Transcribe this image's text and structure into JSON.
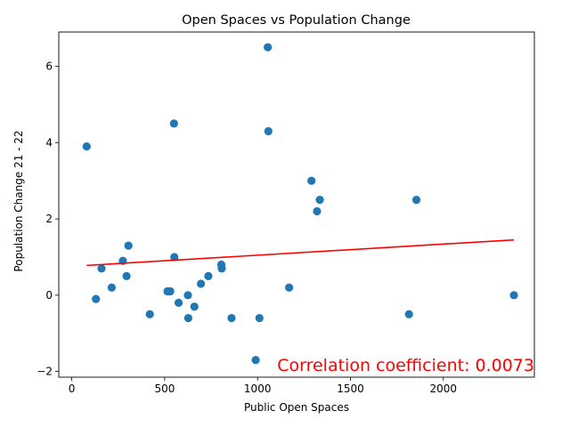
{
  "chart_data": {
    "type": "scatter",
    "title": "Open Spaces vs Population Change",
    "xlabel": "Public Open Spaces",
    "ylabel": "Population Change 21 - 22",
    "xlim": [
      -70,
      2490
    ],
    "ylim": [
      -2.15,
      6.9
    ],
    "xticks": [
      0,
      500,
      1000,
      1500,
      2000
    ],
    "yticks": [
      -2,
      0,
      2,
      4,
      6
    ],
    "grid": false,
    "points_color": "#1f77b4",
    "points": [
      {
        "x": 80,
        "y": 3.9
      },
      {
        "x": 130,
        "y": -0.1
      },
      {
        "x": 160,
        "y": 0.7
      },
      {
        "x": 215,
        "y": 0.2
      },
      {
        "x": 275,
        "y": 0.9
      },
      {
        "x": 295,
        "y": 0.5
      },
      {
        "x": 305,
        "y": 1.3
      },
      {
        "x": 420,
        "y": -0.5
      },
      {
        "x": 515,
        "y": 0.1
      },
      {
        "x": 530,
        "y": 0.1
      },
      {
        "x": 550,
        "y": 4.5
      },
      {
        "x": 552,
        "y": 1.0
      },
      {
        "x": 575,
        "y": -0.2
      },
      {
        "x": 625,
        "y": 0.0
      },
      {
        "x": 627,
        "y": -0.6
      },
      {
        "x": 660,
        "y": -0.3
      },
      {
        "x": 695,
        "y": 0.3
      },
      {
        "x": 735,
        "y": 0.5
      },
      {
        "x": 805,
        "y": 0.8
      },
      {
        "x": 807,
        "y": 0.7
      },
      {
        "x": 860,
        "y": -0.6
      },
      {
        "x": 990,
        "y": -1.7
      },
      {
        "x": 1010,
        "y": -0.6
      },
      {
        "x": 1055,
        "y": 6.5
      },
      {
        "x": 1058,
        "y": 4.3
      },
      {
        "x": 1170,
        "y": 0.2
      },
      {
        "x": 1290,
        "y": 3.0
      },
      {
        "x": 1320,
        "y": 2.2
      },
      {
        "x": 1335,
        "y": 2.5
      },
      {
        "x": 1815,
        "y": -0.5
      },
      {
        "x": 1855,
        "y": 2.5
      },
      {
        "x": 2380,
        "y": 0.0
      }
    ],
    "trendline": {
      "color": "#ff0000",
      "x": [
        80,
        2380
      ],
      "y": [
        0.78,
        1.45
      ]
    },
    "annotation": {
      "text": "Correlation coefficient: 0.0073",
      "color": "#ff0000",
      "placement": "bottom-right"
    }
  }
}
